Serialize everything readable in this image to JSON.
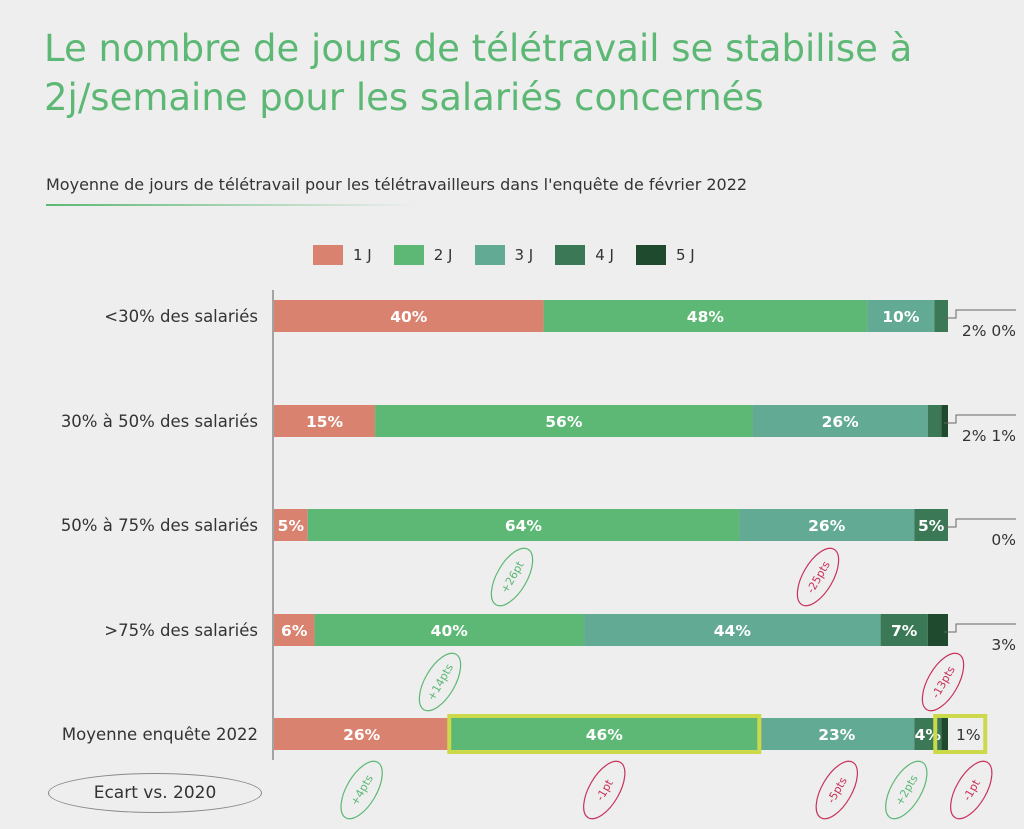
{
  "title": "Le nombre de jours de télétravail se stabilise à 2j/semaine pour les salariés concernés",
  "subtitle": "Moyenne de jours de télétravail pour les télétravailleurs  dans l'enquête de février 2022",
  "ecart_label": "Ecart vs. 2020",
  "colors": {
    "1 J": "#d9826f",
    "2 J": "#5cb874",
    "3 J": "#62aa93",
    "4 J": "#3b7856",
    "5 J": "#1f4a2d",
    "highlight": "#ccd94a",
    "positive": "#5cb874",
    "negative": "#c8325a"
  },
  "chart_data": {
    "type": "bar",
    "orientation": "horizontal",
    "stacked": true,
    "xlim": [
      0,
      100
    ],
    "categories": [
      "<30% des salariés",
      "30% à 50% des salariés",
      "50% à 75% des salariés",
      ">75% des salariés",
      "Moyenne enquête 2022"
    ],
    "series": [
      {
        "name": "1 J",
        "values": [
          40,
          15,
          5,
          6,
          26
        ],
        "labels": [
          "40%",
          "15%",
          "5%",
          "6%",
          "26%"
        ]
      },
      {
        "name": "2 J",
        "values": [
          48,
          56,
          64,
          40,
          46
        ],
        "labels": [
          "48%",
          "56%",
          "64%",
          "40%",
          "46%"
        ]
      },
      {
        "name": "3 J",
        "values": [
          10,
          26,
          26,
          44,
          23
        ],
        "labels": [
          "10%",
          "26%",
          "26%",
          "44%",
          "23%"
        ]
      },
      {
        "name": "4 J",
        "values": [
          2,
          2,
          5,
          7,
          4
        ],
        "labels": [
          "2%",
          "2%",
          "5%",
          "7%",
          "4%"
        ]
      },
      {
        "name": "5 J",
        "values": [
          0,
          1,
          0,
          3,
          1
        ],
        "labels": [
          "0%",
          "1%",
          "0%",
          "3%",
          "1%"
        ]
      }
    ],
    "highlighted": [
      {
        "category": "Moyenne enquête 2022",
        "series": [
          "2 J",
          "5 J"
        ]
      }
    ],
    "annotations": [
      {
        "text": "+26pt",
        "category": "50% à 75% des salariés",
        "series": "2 J",
        "sign": "positive"
      },
      {
        "text": "-25pts",
        "category": "50% à 75% des salariés",
        "series": "3 J",
        "sign": "negative"
      },
      {
        "text": "+14pts",
        "category": ">75% des salariés",
        "series": "2 J",
        "sign": "positive"
      },
      {
        "text": "-13pts",
        "category": ">75% des salariés",
        "series": "5 J",
        "sign": "negative"
      },
      {
        "text": "+4pts",
        "category": "Ecart vs. 2020",
        "series": "1 J",
        "sign": "positive"
      },
      {
        "text": "-1pt",
        "category": "Ecart vs. 2020",
        "series": "2 J",
        "sign": "negative"
      },
      {
        "text": "-5pts",
        "category": "Ecart vs. 2020",
        "series": "3 J",
        "sign": "negative"
      },
      {
        "text": "+2pts",
        "category": "Ecart vs. 2020",
        "series": "4 J",
        "sign": "positive"
      },
      {
        "text": "-1pt",
        "category": "Ecart vs. 2020",
        "series": "5 J",
        "sign": "negative"
      }
    ]
  }
}
